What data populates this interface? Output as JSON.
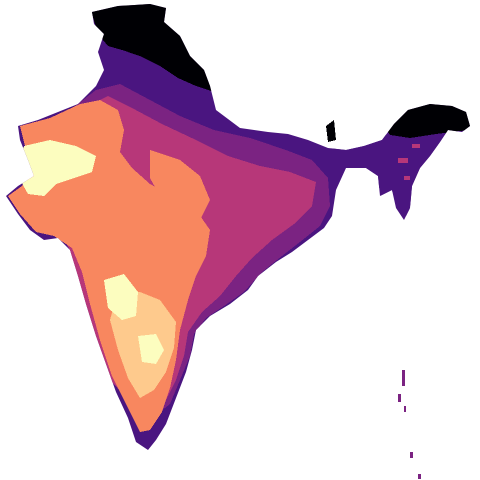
{
  "map": {
    "type": "raster-choropleth",
    "region_shown": "India",
    "colormap": "magma",
    "legend": "none",
    "title": "",
    "palette": {
      "background": "#ffffff",
      "outline": "#000004",
      "class_1": "#000004",
      "class_2": "#4a1580",
      "class_3": "#7b2382",
      "class_4": "#b73779",
      "class_5": "#e0566e",
      "class_6": "#f8875f",
      "class_7": "#feca8d",
      "class_8": "#fcfdbf"
    }
  }
}
